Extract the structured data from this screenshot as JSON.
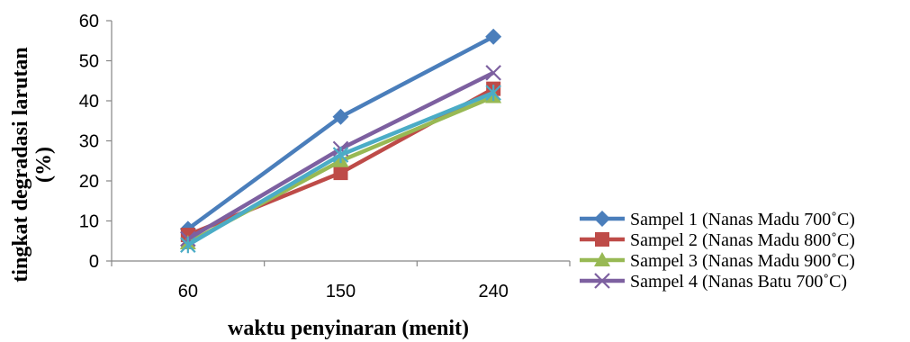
{
  "chart_data": {
    "type": "line",
    "title": "",
    "xlabel": "waktu penyinaran (menit)",
    "ylabel_lines": [
      "tingkat degradasi larutan",
      "(%)"
    ],
    "categories": [
      "60",
      "150",
      "240"
    ],
    "ylim": [
      0,
      60
    ],
    "yticks": [
      0,
      10,
      20,
      30,
      40,
      50,
      60
    ],
    "grid": false,
    "legend_position": "right",
    "series": [
      {
        "name": "Sampel 1 (Nanas Madu 700˚C)",
        "values": [
          8,
          36,
          56
        ],
        "color": "#4a7ebb",
        "marker": "diamond"
      },
      {
        "name": "Sampel 2 (Nanas Madu 800˚C)",
        "values": [
          6.5,
          22,
          43
        ],
        "color": "#be4b48",
        "marker": "square"
      },
      {
        "name": "Sampel  3 (Nanas  Madu 900˚C)",
        "values": [
          4.5,
          25,
          41
        ],
        "color": "#98b954",
        "marker": "triangle"
      },
      {
        "name": "Sampel 4 (Nanas Batu 700˚C)",
        "values": [
          5.5,
          28,
          47
        ],
        "color": "#7d60a0",
        "marker": "x"
      },
      {
        "name": "",
        "values": [
          4,
          26.5,
          42
        ],
        "color": "#4bacc6",
        "marker": "star"
      }
    ]
  }
}
